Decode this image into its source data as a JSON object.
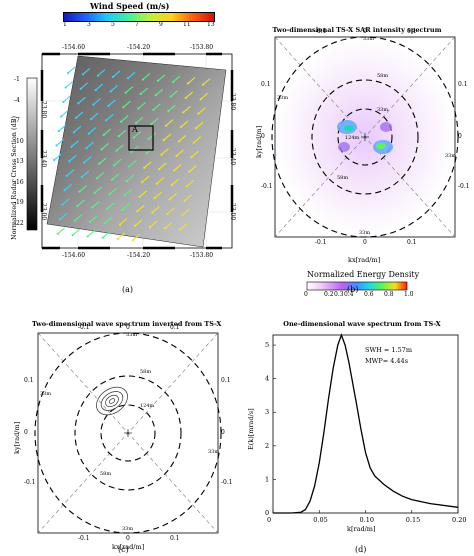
{
  "panel_a": {
    "colorbar_title": "Wind Speed (m/s)",
    "colorbar_ticks": [
      "1",
      "3",
      "5",
      "7",
      "9",
      "11",
      "13"
    ],
    "lon_ticks": [
      "-154.60",
      "-154.20",
      "-153.80"
    ],
    "lat_ticks_left": [
      "23.80",
      "23.40",
      "23.00"
    ],
    "lat_ticks_right": [
      "23.80",
      "23.40",
      "23.00"
    ],
    "nrcs_label": "Normalized Radar Cross Section (dB)",
    "nrcs_ticks": [
      "-1",
      "-4",
      "-7",
      "-10",
      "-13",
      "-16",
      "-19",
      "-22"
    ],
    "box_label": "A",
    "caption": "(a)",
    "colors": {
      "wind_low": "#3ad3ff",
      "wind_mid": "#5cf08a",
      "wind_high": "#f0e030"
    }
  },
  "panel_b": {
    "title": "Two-dimensional TS-X SAR intensity spectrum",
    "top_ticks": [
      "-0.1",
      "0",
      "0.1"
    ],
    "bottom_ticks": [
      "-0.1",
      "0",
      "0.1"
    ],
    "left_ticks": [
      "0.1",
      "0",
      "-0.1"
    ],
    "right_ticks": [
      "0.1",
      "0",
      "-0.1"
    ],
    "xlabel": "kx[rad/m]",
    "ylabel": "ky[rad/m]",
    "ring_labels": [
      "33m",
      "58m",
      "33m",
      "58m",
      "33m",
      "33m",
      "33m",
      "124m"
    ],
    "colorbar_title": "Normalized Energy Density",
    "colorbar_ticks": [
      "0",
      "0.2",
      "0.3",
      "0.4",
      "0.6",
      "0.8",
      "1.0"
    ],
    "caption": "(b)"
  },
  "panel_c": {
    "title": "Two-dimensional wave spectrum inverted from TS-X",
    "top_ticks": [
      "-0.1",
      "0",
      "0.1"
    ],
    "bottom_ticks": [
      "-0.1",
      "0",
      "0.1"
    ],
    "left_ticks": [
      "0.1",
      "0",
      "-0.1"
    ],
    "right_ticks": [
      "0.1",
      "0",
      "-0.1"
    ],
    "xlabel": "kx[rad/m]",
    "ylabel": "ky[rad/m]",
    "ring_labels": [
      "33m",
      "58m",
      "33m",
      "58m",
      "33m",
      "33m",
      "124m"
    ],
    "caption": "(c)"
  },
  "panel_d": {
    "caption": "(d)",
    "chart_data": {
      "type": "line",
      "title": "One-dimensional wave spectrum from TS-X",
      "xlabel": "k[rad/m]",
      "ylabel": "E(k)[mrad/s]",
      "xlim": [
        0,
        0.2
      ],
      "ylim": [
        0,
        5.3
      ],
      "x_ticks": [
        "0",
        "0.05",
        "0.10",
        "0.15",
        "0.20"
      ],
      "y_ticks": [
        "0",
        "1",
        "2",
        "3",
        "4",
        "5"
      ],
      "annotations": [
        "SWH = 1.57m",
        "MWP= 4.44s"
      ],
      "series": [
        {
          "x": [
            0.0,
            0.02,
            0.03,
            0.035,
            0.04,
            0.045,
            0.05,
            0.055,
            0.06,
            0.065,
            0.07,
            0.074,
            0.078,
            0.082,
            0.086,
            0.09,
            0.095,
            0.1,
            0.105,
            0.11,
            0.12,
            0.13,
            0.14,
            0.15,
            0.17,
            0.2
          ],
          "values": [
            0.0,
            0.0,
            0.02,
            0.1,
            0.35,
            0.8,
            1.5,
            2.4,
            3.4,
            4.3,
            5.0,
            5.3,
            5.0,
            4.5,
            3.9,
            3.3,
            2.5,
            1.8,
            1.35,
            1.1,
            0.85,
            0.65,
            0.5,
            0.4,
            0.28,
            0.17
          ]
        }
      ]
    }
  }
}
